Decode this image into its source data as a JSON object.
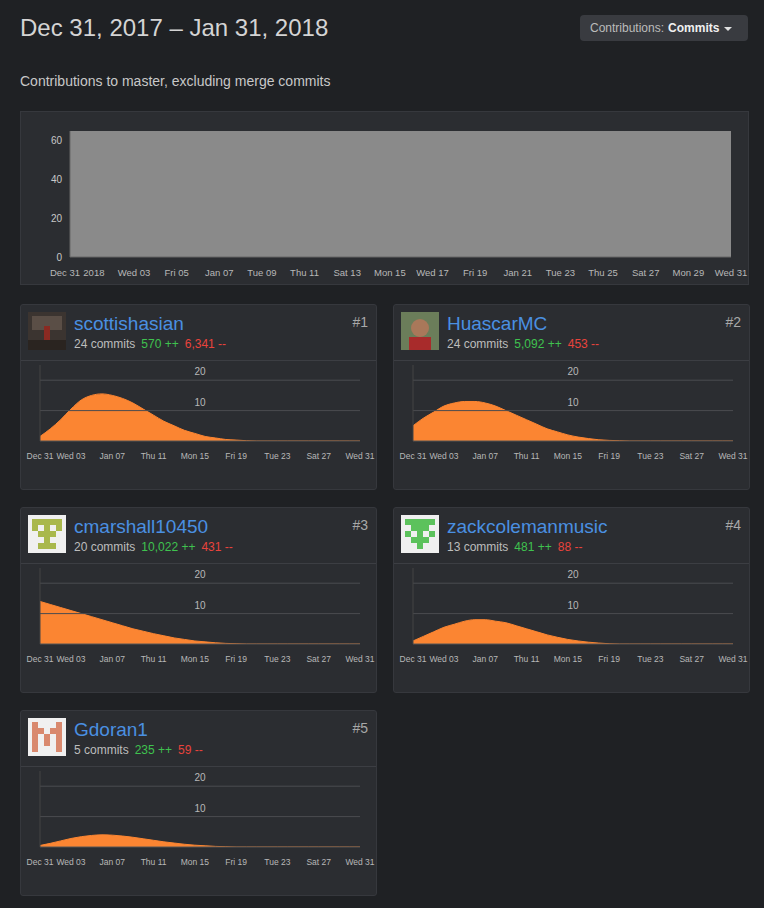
{
  "header": {
    "title": "Dec 31, 2017 – Jan 31, 2018",
    "menu_label": "Contributions:",
    "menu_value": "Commits",
    "subtitle": "Contributions to master, excluding merge commits"
  },
  "chart_data": [
    {
      "type": "area",
      "categories": [
        "Dec 31",
        "2018",
        null,
        "Wed 03",
        null,
        "Fri 05",
        null,
        "Jan 07",
        null,
        "Tue 09",
        null,
        "Thu 11",
        null,
        "Sat 13",
        null,
        "Mon 15",
        null,
        "Wed 17",
        null,
        "Fri 19",
        null,
        "Jan 21",
        null,
        "Tue 23",
        null,
        "Thu 25",
        null,
        "Sat 27",
        null,
        "Mon 29",
        null,
        "Wed 31"
      ],
      "values": [
        65,
        65,
        65,
        65,
        65,
        65,
        65,
        65,
        65,
        65,
        65,
        65,
        65,
        65,
        65,
        65,
        65,
        65,
        65,
        65,
        65,
        65,
        65,
        65,
        65,
        65,
        65,
        65,
        65,
        65,
        65,
        65
      ],
      "color": "#8a8a8a",
      "ylim": [
        0,
        65
      ],
      "yticks": [
        0,
        20,
        40,
        60
      ],
      "grid": false
    },
    {
      "type": "area",
      "title": "scottishasian",
      "rank": "#1",
      "commits": "24 commits",
      "additions": "570 ++",
      "deletions": "6,341 --",
      "categories": [
        "Dec 31",
        null,
        null,
        "Wed 03",
        null,
        null,
        null,
        "Jan 07",
        null,
        null,
        null,
        "Thu 11",
        null,
        null,
        null,
        "Mon 15",
        null,
        null,
        null,
        "Fri 19",
        null,
        null,
        null,
        "Tue 23",
        null,
        null,
        null,
        "Sat 27",
        null,
        null,
        null,
        "Wed 31"
      ],
      "values": [
        1.5,
        4,
        7,
        10.5,
        13.5,
        15,
        15.5,
        15,
        14,
        12.5,
        10.5,
        8.5,
        6.5,
        5,
        3.5,
        2.5,
        1.5,
        1,
        0.5,
        0.3,
        0.1,
        0,
        0,
        0,
        0,
        0,
        0,
        0,
        0,
        0,
        0,
        0
      ],
      "color": "#fb8532",
      "ylim": [
        0,
        25
      ],
      "yticks": [
        10,
        20
      ],
      "grid": true
    },
    {
      "type": "area",
      "title": "HuascarMC",
      "rank": "#2",
      "commits": "24 commits",
      "additions": "5,092 ++",
      "deletions": "453 --",
      "categories": [
        "Dec 31",
        null,
        null,
        "Wed 03",
        null,
        null,
        null,
        "Jan 07",
        null,
        null,
        null,
        "Thu 11",
        null,
        null,
        null,
        "Mon 15",
        null,
        null,
        null,
        "Fri 19",
        null,
        null,
        null,
        "Tue 23",
        null,
        null,
        null,
        "Sat 27",
        null,
        null,
        null,
        "Wed 31"
      ],
      "values": [
        5,
        7.5,
        9.5,
        11.5,
        12.5,
        13,
        13,
        12.5,
        11.5,
        10,
        8.5,
        7,
        5.5,
        4,
        3,
        2,
        1.3,
        0.8,
        0.4,
        0.2,
        0.1,
        0,
        0,
        0,
        0,
        0,
        0,
        0,
        0,
        0,
        0,
        0
      ],
      "color": "#fb8532",
      "ylim": [
        0,
        25
      ],
      "yticks": [
        10,
        20
      ],
      "grid": true
    },
    {
      "type": "area",
      "title": "cmarshall10450",
      "rank": "#3",
      "commits": "20 commits",
      "additions": "10,022 ++",
      "deletions": "431 --",
      "categories": [
        "Dec 31",
        null,
        null,
        "Wed 03",
        null,
        null,
        null,
        "Jan 07",
        null,
        null,
        null,
        "Thu 11",
        null,
        null,
        null,
        "Mon 15",
        null,
        null,
        null,
        "Fri 19",
        null,
        null,
        null,
        "Tue 23",
        null,
        null,
        null,
        "Sat 27",
        null,
        null,
        null,
        "Wed 31"
      ],
      "values": [
        14,
        13,
        12,
        11,
        10,
        9,
        8,
        7,
        6,
        5,
        4.2,
        3.4,
        2.7,
        2,
        1.5,
        1,
        0.7,
        0.4,
        0.2,
        0.1,
        0,
        0,
        0,
        0,
        0,
        0,
        0,
        0,
        0,
        0,
        0,
        0
      ],
      "color": "#fb8532",
      "ylim": [
        0,
        25
      ],
      "yticks": [
        10,
        20
      ],
      "grid": true
    },
    {
      "type": "area",
      "title": "zackcolemanmusic",
      "rank": "#4",
      "commits": "13 commits",
      "additions": "481 ++",
      "deletions": "88 --",
      "categories": [
        "Dec 31",
        null,
        null,
        "Wed 03",
        null,
        null,
        null,
        "Jan 07",
        null,
        null,
        null,
        "Thu 11",
        null,
        null,
        null,
        "Mon 15",
        null,
        null,
        null,
        "Fri 19",
        null,
        null,
        null,
        "Tue 23",
        null,
        null,
        null,
        "Sat 27",
        null,
        null,
        null,
        "Wed 31"
      ],
      "values": [
        1,
        2.5,
        4,
        5.5,
        6.5,
        7.5,
        8,
        8,
        7.5,
        7,
        6,
        5,
        4,
        3,
        2.2,
        1.5,
        1,
        0.6,
        0.3,
        0.1,
        0,
        0,
        0,
        0,
        0,
        0,
        0,
        0,
        0,
        0,
        0,
        0
      ],
      "color": "#fb8532",
      "ylim": [
        0,
        25
      ],
      "yticks": [
        10,
        20
      ],
      "grid": true
    },
    {
      "type": "area",
      "title": "Gdoran1",
      "rank": "#5",
      "commits": "5 commits",
      "additions": "235 ++",
      "deletions": "59 --",
      "categories": [
        "Dec 31",
        null,
        null,
        "Wed 03",
        null,
        null,
        null,
        "Jan 07",
        null,
        null,
        null,
        "Thu 11",
        null,
        null,
        null,
        "Mon 15",
        null,
        null,
        null,
        "Fri 19",
        null,
        null,
        null,
        "Tue 23",
        null,
        null,
        null,
        "Sat 27",
        null,
        null,
        null,
        "Wed 31"
      ],
      "values": [
        0.5,
        1.2,
        2,
        2.8,
        3.4,
        3.8,
        4,
        3.9,
        3.6,
        3.2,
        2.7,
        2.2,
        1.7,
        1.3,
        0.9,
        0.6,
        0.4,
        0.2,
        0.1,
        0,
        0,
        0,
        0,
        0,
        0,
        0,
        0,
        0,
        0,
        0,
        0,
        0
      ],
      "color": "#fb8532",
      "ylim": [
        0,
        25
      ],
      "yticks": [
        10,
        20
      ],
      "grid": true
    }
  ]
}
